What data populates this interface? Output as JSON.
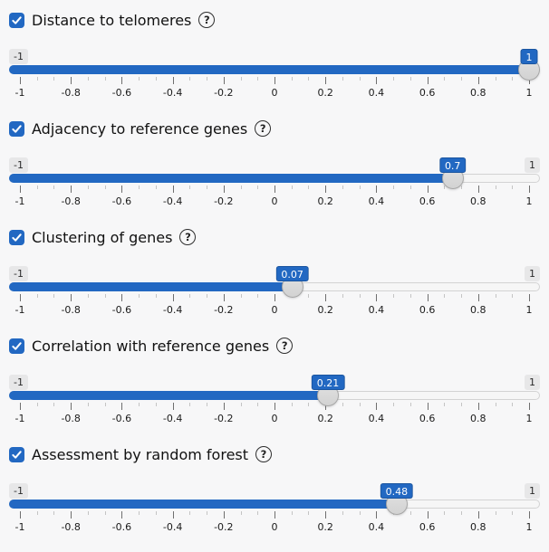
{
  "accent_color": "#2268c2",
  "checkmark_icon": "check",
  "help_icon_glyph": "?",
  "grid": {
    "major_labels": [
      "-1",
      "-0.8",
      "-0.6",
      "-0.4",
      "-0.2",
      "0",
      "0.2",
      "0.4",
      "0.6",
      "0.8",
      "1"
    ],
    "minors_between_majors": 2
  },
  "sliders": [
    {
      "label": "Distance to telomeres",
      "checked": true,
      "min": -1,
      "max": 1,
      "value": 1,
      "min_label": "-1",
      "max_label": "1",
      "value_label": "1",
      "show_max_chip": false
    },
    {
      "label": "Adjacency to reference genes",
      "checked": true,
      "min": -1,
      "max": 1,
      "value": 0.7,
      "min_label": "-1",
      "max_label": "1",
      "value_label": "0.7",
      "show_max_chip": true
    },
    {
      "label": "Clustering of genes",
      "checked": true,
      "min": -1,
      "max": 1,
      "value": 0.07,
      "min_label": "-1",
      "max_label": "1",
      "value_label": "0.07",
      "show_max_chip": true
    },
    {
      "label": "Correlation with reference genes",
      "checked": true,
      "min": -1,
      "max": 1,
      "value": 0.21,
      "min_label": "-1",
      "max_label": "1",
      "value_label": "0.21",
      "show_max_chip": true
    },
    {
      "label": "Assessment by random forest",
      "checked": true,
      "min": -1,
      "max": 1,
      "value": 0.48,
      "min_label": "-1",
      "max_label": "1",
      "value_label": "0.48",
      "show_max_chip": true
    }
  ]
}
